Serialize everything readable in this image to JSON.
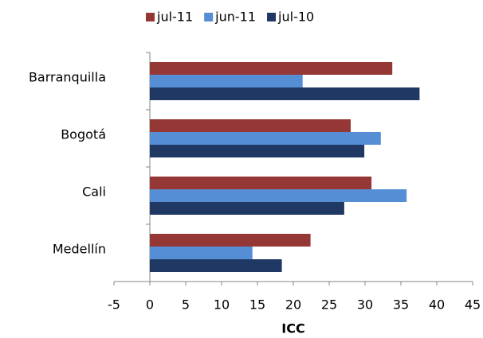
{
  "chart_data": {
    "type": "bar",
    "orientation": "horizontal",
    "x_label": "ICC",
    "categories": [
      "Barranquilla",
      "Bogotá",
      "Cali",
      "Medellín"
    ],
    "series": [
      {
        "name": "jul-11",
        "color": "#953735",
        "values": [
          33.8,
          28.0,
          30.9,
          22.4
        ]
      },
      {
        "name": "jun-11",
        "color": "#558ed5",
        "values": [
          21.3,
          32.2,
          35.8,
          14.3
        ]
      },
      {
        "name": "jul-10",
        "color": "#1f3864",
        "values": [
          37.6,
          29.9,
          27.1,
          18.4
        ]
      }
    ],
    "xlim": [
      -5,
      45
    ],
    "xticks": [
      -5,
      0,
      5,
      10,
      15,
      20,
      25,
      30,
      35,
      40,
      45
    ],
    "grid": false,
    "legend": "top"
  }
}
